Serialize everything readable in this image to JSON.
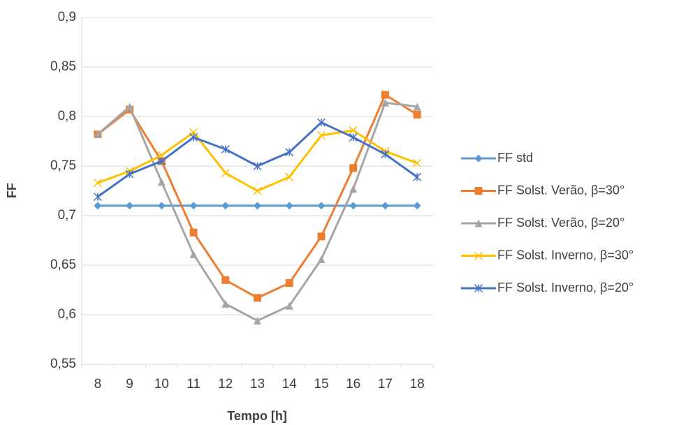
{
  "chart_data": {
    "type": "line",
    "x_label": "Tempo [h]",
    "y_label": "FF",
    "categories": [
      "8",
      "9",
      "10",
      "11",
      "12",
      "13",
      "14",
      "15",
      "16",
      "17",
      "18"
    ],
    "ylim": [
      0.55,
      0.9
    ],
    "yticks": [
      {
        "value": 0.55,
        "label": "0,55"
      },
      {
        "value": 0.6,
        "label": "0,6"
      },
      {
        "value": 0.65,
        "label": "0,65"
      },
      {
        "value": 0.7,
        "label": "0,7"
      },
      {
        "value": 0.75,
        "label": "0,75"
      },
      {
        "value": 0.8,
        "label": "0,8"
      },
      {
        "value": 0.85,
        "label": "0,85"
      },
      {
        "value": 0.9,
        "label": "0,9"
      }
    ],
    "grid": true,
    "legend": "right",
    "series": [
      {
        "name": "FF std",
        "color": "#5b9bd5",
        "marker": "diamond",
        "values": [
          0.71,
          0.71,
          0.71,
          0.71,
          0.71,
          0.71,
          0.71,
          0.71,
          0.71,
          0.71,
          0.71
        ]
      },
      {
        "name": "FF Solst. Verão, β=30°",
        "color": "#ed7d31",
        "marker": "square",
        "values": [
          0.782,
          0.807,
          0.755,
          0.683,
          0.635,
          0.617,
          0.632,
          0.679,
          0.748,
          0.822,
          0.802
        ]
      },
      {
        "name": "FF Solst. Verão, β=20°",
        "color": "#a5a5a5",
        "marker": "triangle",
        "values": [
          0.782,
          0.81,
          0.734,
          0.661,
          0.611,
          0.594,
          0.609,
          0.656,
          0.727,
          0.814,
          0.81
        ]
      },
      {
        "name": "FF Solst. Inverno, β=30°",
        "color": "#ffc000",
        "marker": "x",
        "values": [
          0.733,
          0.745,
          0.761,
          0.784,
          0.743,
          0.725,
          0.739,
          0.781,
          0.786,
          0.765,
          0.753
        ]
      },
      {
        "name": "FF Solst. Inverno, β=20°",
        "color": "#4472c4",
        "marker": "star",
        "values": [
          0.719,
          0.742,
          0.755,
          0.779,
          0.767,
          0.75,
          0.764,
          0.794,
          0.779,
          0.762,
          0.739
        ]
      }
    ]
  }
}
